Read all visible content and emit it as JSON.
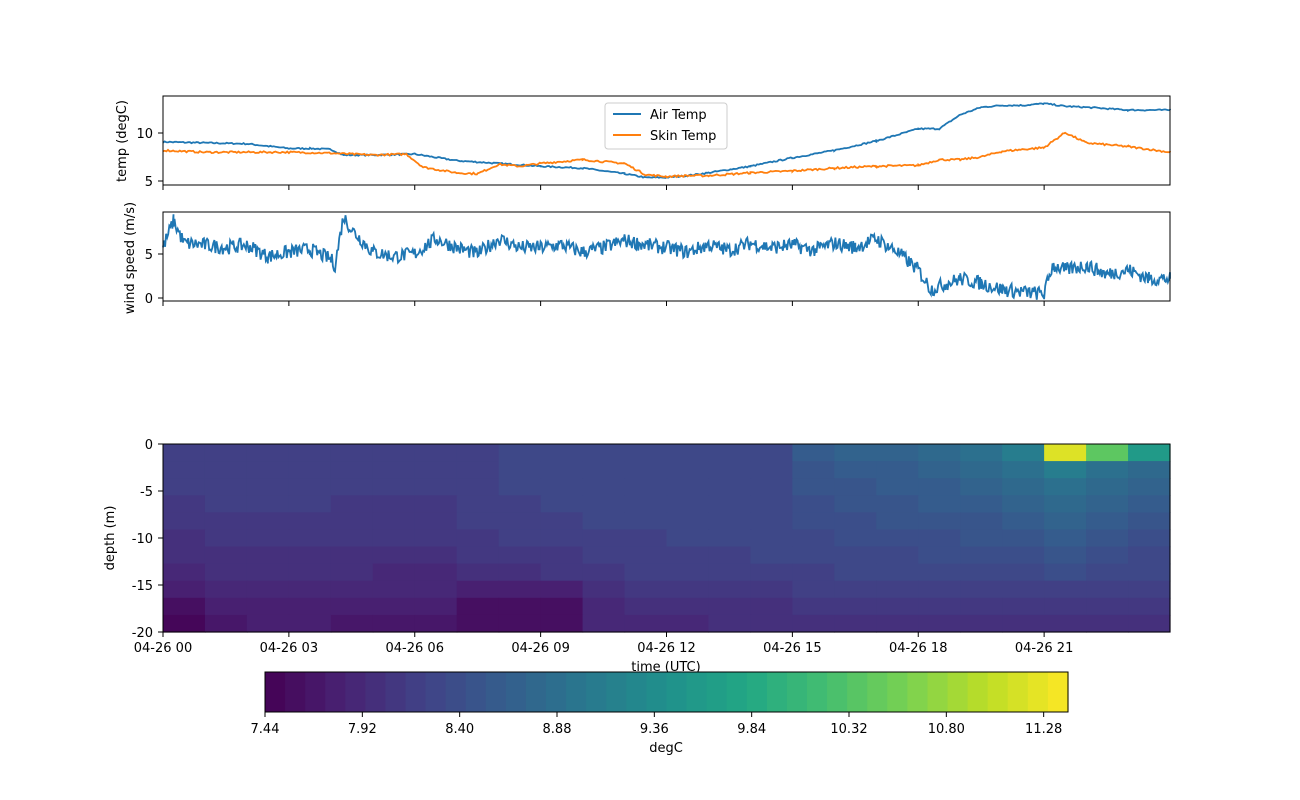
{
  "chart_data": [
    {
      "type": "line",
      "ylabel": "temp (degC)",
      "ylim": [
        4.5,
        14
      ],
      "yticks": [
        5,
        10
      ],
      "x_range": [
        "04-26 00:00",
        "04-27 00:00"
      ],
      "legend_position": "top-center",
      "colors": {
        "Air Temp": "#1f77b4",
        "Skin Temp": "#ff7f0e"
      },
      "series": [
        {
          "name": "Air Temp",
          "x": [
            0,
            1,
            2,
            3,
            3.5,
            4,
            4.3,
            5,
            6,
            7,
            8,
            9,
            10,
            11,
            11.5,
            12,
            12.5,
            13,
            14,
            15,
            16,
            17,
            18,
            18.5,
            19,
            19.5,
            20,
            20.5,
            21,
            21.5,
            22,
            23,
            24
          ],
          "values": [
            9.1,
            9.0,
            8.9,
            8.4,
            8.4,
            8.3,
            7.7,
            7.7,
            7.8,
            7.1,
            6.8,
            6.5,
            6.3,
            5.7,
            5.3,
            5.3,
            5.5,
            5.8,
            6.5,
            7.4,
            8.2,
            9.2,
            10.5,
            10.5,
            12.0,
            12.8,
            13.0,
            13.0,
            13.2,
            12.9,
            12.8,
            12.5,
            12.5
          ]
        },
        {
          "name": "Skin Temp",
          "x": [
            0,
            1,
            2,
            3,
            4,
            5,
            5.8,
            6.2,
            7,
            7.5,
            8,
            8.5,
            9,
            10,
            11,
            11.5,
            12,
            12.5,
            13,
            14,
            15,
            16,
            17,
            18,
            18.5,
            19,
            19.5,
            20,
            21,
            21.5,
            22,
            23,
            24
          ],
          "values": [
            8.2,
            8.0,
            8.0,
            8.0,
            7.9,
            7.7,
            7.8,
            6.4,
            5.8,
            5.7,
            6.7,
            6.5,
            6.8,
            7.2,
            6.8,
            5.6,
            5.4,
            5.5,
            5.5,
            5.8,
            6.0,
            6.3,
            6.5,
            6.6,
            7.2,
            7.2,
            7.5,
            8.1,
            8.5,
            10.1,
            9.0,
            8.6,
            8.0
          ]
        }
      ]
    },
    {
      "type": "line",
      "ylabel": "wind speed (m/s)",
      "ylim": [
        -0.5,
        9.5
      ],
      "yticks": [
        0,
        5
      ],
      "x_range": [
        "04-26 00:00",
        "04-27 00:00"
      ],
      "colors": {
        "wind speed": "#1f77b4"
      },
      "series": [
        {
          "x": [
            0,
            0.25,
            0.5,
            1,
            1.5,
            2,
            2.5,
            3,
            3.5,
            4,
            4.1,
            4.3,
            4.5,
            5,
            5.5,
            6,
            6.5,
            7,
            7.5,
            8,
            8.5,
            9,
            9.5,
            10,
            10.5,
            11,
            11.5,
            12,
            12.5,
            13,
            13.5,
            14,
            14.5,
            15,
            15.5,
            16,
            16.5,
            17,
            17.5,
            18,
            18.3,
            18.7,
            19,
            19.5,
            20,
            20.5,
            21,
            21.2,
            21.5,
            22,
            22.5,
            23,
            23.5,
            24
          ],
          "values": [
            5.5,
            8.5,
            6.0,
            5.8,
            5.5,
            5.8,
            4.5,
            5.0,
            5.3,
            4.2,
            3.5,
            9.0,
            7.5,
            5.0,
            4.5,
            4.8,
            6.5,
            5.5,
            4.8,
            6.5,
            5.5,
            5.5,
            5.8,
            5.0,
            5.5,
            6.3,
            5.8,
            5.5,
            5.0,
            5.8,
            5.2,
            6.0,
            5.5,
            5.8,
            5.2,
            6.0,
            5.5,
            6.5,
            5.0,
            3.0,
            0.8,
            1.5,
            2.0,
            1.5,
            0.8,
            0.5,
            0.3,
            3.5,
            3.0,
            3.5,
            2.5,
            3.0,
            2.0,
            2.0
          ]
        }
      ]
    },
    {
      "type": "heatmap",
      "xlabel": "time (UTC)",
      "ylabel": "depth (m)",
      "ylim": [
        -20,
        0
      ],
      "yticks": [
        0,
        -5,
        -10,
        -15,
        -20
      ],
      "xtick_labels": [
        "04-26 00",
        "04-26 03",
        "04-26 06",
        "04-26 09",
        "04-26 12",
        "04-26 15",
        "04-26 18",
        "04-26 21"
      ],
      "colormap": "viridis",
      "vmin": 7.44,
      "vmax": 11.4,
      "colorbar": {
        "label": "degC",
        "ticks": [
          "7.44",
          "7.92",
          "8.40",
          "8.88",
          "9.36",
          "9.84",
          "10.32",
          "10.80",
          "11.28"
        ]
      },
      "time_hours": [
        0,
        1,
        2,
        3,
        4,
        5,
        6,
        7,
        8,
        9,
        10,
        11,
        12,
        13,
        14,
        15,
        16,
        17,
        18,
        19,
        20,
        21,
        22,
        23
      ],
      "depth_m": [
        0,
        -2,
        -4,
        -6,
        -8,
        -10,
        -12,
        -14,
        -16,
        -18,
        -20
      ],
      "values": [
        [
          8.2,
          8.2,
          8.2,
          8.2,
          8.2,
          8.2,
          8.2,
          8.2,
          8.3,
          8.3,
          8.3,
          8.3,
          8.3,
          8.3,
          8.3,
          8.6,
          8.7,
          8.7,
          8.8,
          8.9,
          9.1,
          11.2,
          10.4,
          9.6
        ],
        [
          8.2,
          8.2,
          8.2,
          8.2,
          8.2,
          8.2,
          8.2,
          8.2,
          8.3,
          8.3,
          8.3,
          8.3,
          8.3,
          8.3,
          8.3,
          8.5,
          8.6,
          8.6,
          8.7,
          8.8,
          8.9,
          9.1,
          8.9,
          8.8
        ],
        [
          8.2,
          8.2,
          8.2,
          8.2,
          8.2,
          8.2,
          8.2,
          8.2,
          8.3,
          8.3,
          8.3,
          8.3,
          8.3,
          8.3,
          8.3,
          8.5,
          8.5,
          8.6,
          8.6,
          8.7,
          8.8,
          8.9,
          8.8,
          8.7
        ],
        [
          8.1,
          8.2,
          8.2,
          8.2,
          8.1,
          8.1,
          8.1,
          8.2,
          8.2,
          8.3,
          8.3,
          8.3,
          8.3,
          8.3,
          8.3,
          8.4,
          8.5,
          8.5,
          8.6,
          8.6,
          8.7,
          8.8,
          8.7,
          8.6
        ],
        [
          8.1,
          8.1,
          8.1,
          8.1,
          8.1,
          8.1,
          8.1,
          8.2,
          8.2,
          8.2,
          8.3,
          8.3,
          8.3,
          8.3,
          8.3,
          8.4,
          8.4,
          8.5,
          8.5,
          8.5,
          8.6,
          8.7,
          8.6,
          8.5
        ],
        [
          8.0,
          8.1,
          8.1,
          8.1,
          8.1,
          8.1,
          8.1,
          8.1,
          8.2,
          8.2,
          8.2,
          8.2,
          8.3,
          8.3,
          8.3,
          8.3,
          8.4,
          8.4,
          8.4,
          8.5,
          8.5,
          8.6,
          8.5,
          8.4
        ],
        [
          8.0,
          8.0,
          8.0,
          8.0,
          8.0,
          8.0,
          8.0,
          8.1,
          8.1,
          8.1,
          8.2,
          8.2,
          8.2,
          8.2,
          8.3,
          8.3,
          8.3,
          8.3,
          8.4,
          8.4,
          8.4,
          8.5,
          8.4,
          8.3
        ],
        [
          7.9,
          8.0,
          8.0,
          8.0,
          8.0,
          7.9,
          7.9,
          8.0,
          8.0,
          8.1,
          8.1,
          8.2,
          8.2,
          8.2,
          8.2,
          8.2,
          8.3,
          8.3,
          8.3,
          8.3,
          8.3,
          8.4,
          8.3,
          8.3
        ],
        [
          7.8,
          7.9,
          7.9,
          7.9,
          7.9,
          7.9,
          7.9,
          7.8,
          7.8,
          7.8,
          8.0,
          8.1,
          8.1,
          8.1,
          8.1,
          8.2,
          8.2,
          8.2,
          8.2,
          8.2,
          8.2,
          8.2,
          8.2,
          8.2
        ],
        [
          7.6,
          7.8,
          7.8,
          7.8,
          7.8,
          7.8,
          7.8,
          7.6,
          7.6,
          7.6,
          7.9,
          8.0,
          8.0,
          8.0,
          8.0,
          8.1,
          8.1,
          8.1,
          8.1,
          8.1,
          8.1,
          8.1,
          8.1,
          8.1
        ],
        [
          7.5,
          7.7,
          7.8,
          7.8,
          7.7,
          7.7,
          7.7,
          7.6,
          7.6,
          7.6,
          7.9,
          7.9,
          7.9,
          8.0,
          8.0,
          8.0,
          8.0,
          8.0,
          8.0,
          8.0,
          8.0,
          8.0,
          8.0,
          8.0
        ]
      ]
    }
  ]
}
